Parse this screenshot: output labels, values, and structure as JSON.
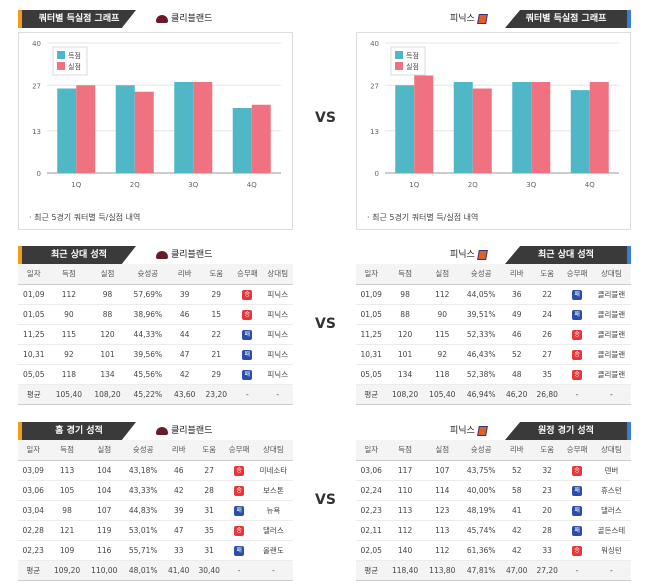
{
  "vs_label": "VS",
  "sections": [
    {
      "left": {
        "tab": "쿼터별 득실점 그래프",
        "team": "클리블랜드",
        "legend": [
          "득점",
          "실점"
        ],
        "note": "· 최근 5경기 쿼터별 득/실점 내역"
      },
      "right": {
        "tab": "쿼터별 득실점 그래프",
        "team": "피닉스",
        "legend": [
          "득점",
          "실점"
        ],
        "note": "· 최근 5경기 쿼터별 득/실점 내역"
      }
    }
  ],
  "chart_data": [
    {
      "type": "bar",
      "categories": [
        "1Q",
        "2Q",
        "3Q",
        "4Q"
      ],
      "ylim": [
        0,
        40
      ],
      "yticks": [
        0,
        13,
        27,
        40
      ],
      "series": [
        {
          "name": "득점",
          "values": [
            26,
            27,
            28,
            20
          ]
        },
        {
          "name": "실점",
          "values": [
            27,
            25,
            28,
            21
          ]
        }
      ],
      "colors": [
        "#4fb7c6",
        "#f07280"
      ]
    },
    {
      "type": "bar",
      "categories": [
        "1Q",
        "2Q",
        "3Q",
        "4Q"
      ],
      "ylim": [
        0,
        40
      ],
      "yticks": [
        0,
        13,
        27,
        40
      ],
      "series": [
        {
          "name": "득점",
          "values": [
            27,
            28,
            28,
            25.5
          ]
        },
        {
          "name": "실점",
          "values": [
            30,
            26,
            28,
            28
          ]
        }
      ],
      "colors": [
        "#4fb7c6",
        "#f07280"
      ]
    }
  ],
  "recent": {
    "left_tab": "최근 상대 성적",
    "left_team": "클리블랜드",
    "right_tab": "최근 상대 성적",
    "right_team": "피닉스",
    "headers": [
      "일자",
      "득점",
      "실점",
      "슛성공",
      "리바",
      "도움",
      "승무패",
      "상대팀"
    ],
    "left_rows": [
      [
        "01,09",
        "112",
        "98",
        "57,69%",
        "39",
        "29",
        "승",
        "피닉스"
      ],
      [
        "01,05",
        "90",
        "88",
        "38,96%",
        "46",
        "15",
        "승",
        "피닉스"
      ],
      [
        "11,25",
        "115",
        "120",
        "44,33%",
        "44",
        "22",
        "패",
        "피닉스"
      ],
      [
        "10,31",
        "92",
        "101",
        "39,56%",
        "47",
        "21",
        "패",
        "피닉스"
      ],
      [
        "05,05",
        "118",
        "134",
        "45,56%",
        "42",
        "29",
        "패",
        "피닉스"
      ]
    ],
    "left_avg": [
      "평균",
      "105,40",
      "108,20",
      "45,22%",
      "43,60",
      "23,20",
      "-",
      "-"
    ],
    "right_rows": [
      [
        "01,09",
        "98",
        "112",
        "44,05%",
        "36",
        "22",
        "패",
        "클리블랜"
      ],
      [
        "01,05",
        "88",
        "90",
        "39,51%",
        "49",
        "24",
        "패",
        "클리블랜"
      ],
      [
        "11,25",
        "120",
        "115",
        "52,33%",
        "46",
        "26",
        "승",
        "클리블랜"
      ],
      [
        "10,31",
        "101",
        "92",
        "46,43%",
        "52",
        "27",
        "승",
        "클리블랜"
      ],
      [
        "05,05",
        "134",
        "118",
        "52,38%",
        "48",
        "35",
        "승",
        "클리블랜"
      ]
    ],
    "right_avg": [
      "평균",
      "108,20",
      "105,40",
      "46,94%",
      "46,20",
      "26,80",
      "-",
      "-"
    ]
  },
  "homeaway": {
    "left_tab": "홈 경기 성적",
    "left_team": "클리블랜드",
    "right_tab": "원정 경기 성적",
    "right_team": "피닉스",
    "headers": [
      "일자",
      "득점",
      "실점",
      "슛성공",
      "리바",
      "도움",
      "승무패",
      "상대팀"
    ],
    "left_rows": [
      [
        "03,09",
        "113",
        "104",
        "43,18%",
        "46",
        "27",
        "승",
        "미네소타"
      ],
      [
        "03,06",
        "105",
        "104",
        "43,33%",
        "42",
        "28",
        "승",
        "보스톤"
      ],
      [
        "03,04",
        "98",
        "107",
        "44,83%",
        "39",
        "31",
        "패",
        "뉴욕"
      ],
      [
        "02,28",
        "121",
        "119",
        "53,01%",
        "47",
        "35",
        "승",
        "댈러스"
      ],
      [
        "02,23",
        "109",
        "116",
        "55,71%",
        "33",
        "31",
        "패",
        "올랜도"
      ]
    ],
    "left_avg": [
      "평균",
      "109,20",
      "110,00",
      "48,01%",
      "41,40",
      "30,40",
      "-",
      "-"
    ],
    "right_rows": [
      [
        "03,06",
        "117",
        "107",
        "43,75%",
        "52",
        "32",
        "승",
        "덴버"
      ],
      [
        "02,24",
        "110",
        "114",
        "40,00%",
        "58",
        "23",
        "패",
        "휴스턴"
      ],
      [
        "02,23",
        "113",
        "123",
        "48,19%",
        "41",
        "20",
        "패",
        "댈러스"
      ],
      [
        "02,11",
        "112",
        "113",
        "45,74%",
        "42",
        "28",
        "패",
        "골든스테"
      ],
      [
        "02,05",
        "140",
        "112",
        "61,36%",
        "42",
        "33",
        "승",
        "워싱턴"
      ]
    ],
    "right_avg": [
      "평균",
      "118,40",
      "113,80",
      "47,81%",
      "47,00",
      "27,20",
      "-",
      "-"
    ]
  }
}
